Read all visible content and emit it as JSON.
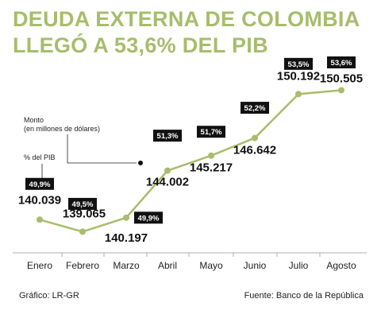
{
  "title_lines": [
    "DEUDA EXTERNA DE COLOMBIA",
    "LLEGÓ A 53,6% DEL PIB"
  ],
  "legend": {
    "monto_line1": "Monto",
    "monto_line2": "(en millones de dólares)",
    "pib": "% del PIB"
  },
  "footer": {
    "source": "Gráfico: LR-GR",
    "credit": "Fuente: Banco de la República"
  },
  "colors": {
    "title": "#a7bd6c",
    "line": "#a7bd6c",
    "badge_bg": "#111111",
    "badge_text": "#ffffff",
    "text": "#111111"
  },
  "chart_data": {
    "type": "line",
    "categories": [
      "Enero",
      "Febrero",
      "Marzo",
      "Abril",
      "Mayo",
      "Junio",
      "Julio",
      "Agosto"
    ],
    "values": [
      140039,
      139065,
      140197,
      144002,
      145217,
      146642,
      150192,
      150505
    ],
    "value_labels": [
      "140.039",
      "139.065",
      "140.197",
      "144.002",
      "145.217",
      "146.642",
      "150.192",
      "150.505"
    ],
    "pib_labels": [
      "49,9%",
      "49,5%",
      "49,9%",
      "51,3%",
      "51,7%",
      "52,2%",
      "53,5%",
      "53,6%"
    ],
    "ylim": [
      138000,
      151500
    ],
    "grid": false
  }
}
